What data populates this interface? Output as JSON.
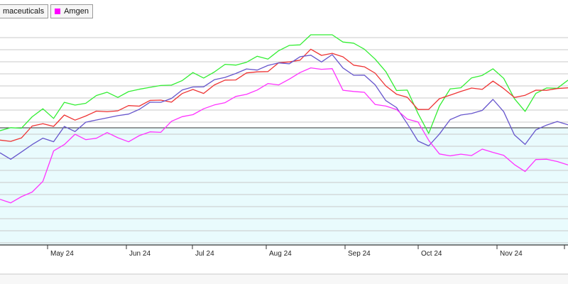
{
  "chart_data": {
    "type": "line",
    "legend": [
      {
        "label": "maceuticals",
        "color": "#2a2a2a",
        "swatch": false
      },
      {
        "label": "Amgen",
        "color": "#ff00ff",
        "swatch": true
      }
    ],
    "x_ticks": [
      "May 24",
      "Jun 24",
      "Jul 24",
      "Aug 24",
      "Sep 24",
      "Oct 24",
      "Nov 24"
    ],
    "xlabel": "",
    "ylabel": "",
    "grid": true,
    "legend_position": "top-left",
    "baseline_note": "horizontal reference line with pale cyan fill below it",
    "series": [
      {
        "color": "#33ee33",
        "values": [
          -0.5,
          -0.3,
          0.3,
          1.8,
          3.0,
          2.0,
          4.2,
          3.7,
          4.6,
          5.3,
          6.0,
          5.6,
          5.9,
          6.6,
          7.3,
          6.9,
          7.4,
          8.4,
          9.1,
          8.7,
          9.8,
          10.5,
          11.0,
          11.4,
          11.9,
          12.1,
          13.3,
          13.8,
          14.6,
          16.8,
          15.9,
          16.5,
          14.6,
          14.3,
          13.9,
          11.6,
          9.5,
          6.8,
          6.2,
          2.4,
          -0.6,
          3.4,
          6.7,
          7.2,
          8.2,
          9.1,
          10.4,
          8.1,
          5.2,
          3.0,
          5.5,
          7.1,
          6.9,
          7.8
        ]
      },
      {
        "color": "#ee3333",
        "values": [
          -2.5,
          -2.2,
          -1.5,
          -0.1,
          0.9,
          0.4,
          1.8,
          1.6,
          2.1,
          2.5,
          3.1,
          2.9,
          3.5,
          4.1,
          4.6,
          4.5,
          4.8,
          5.7,
          6.4,
          6.3,
          7.1,
          8.1,
          8.6,
          9.1,
          9.6,
          10.0,
          10.8,
          11.4,
          11.9,
          13.1,
          12.6,
          13.0,
          11.8,
          11.0,
          10.6,
          9.0,
          7.5,
          5.8,
          4.9,
          3.5,
          3.1,
          4.7,
          6.0,
          6.1,
          6.6,
          7.0,
          7.8,
          6.6,
          5.6,
          5.3,
          6.4,
          6.8,
          6.4,
          6.9
        ]
      },
      {
        "color": "#6655cc",
        "values": [
          -4.5,
          -5.0,
          -4.4,
          -3.0,
          -1.4,
          -2.7,
          0.2,
          -0.3,
          0.6,
          1.4,
          2.0,
          1.7,
          2.5,
          3.4,
          4.0,
          4.6,
          5.2,
          6.1,
          7.3,
          7.1,
          7.9,
          9.0,
          9.3,
          9.8,
          10.3,
          10.6,
          10.9,
          11.4,
          12.0,
          12.3,
          11.7,
          12.3,
          10.2,
          9.4,
          8.7,
          7.4,
          5.0,
          3.1,
          0.8,
          -2.0,
          -3.5,
          -0.9,
          1.6,
          1.8,
          2.7,
          3.1,
          4.5,
          3.1,
          -1.2,
          -3.2,
          0.0,
          0.4,
          0.8,
          0.9
        ]
      },
      {
        "color": "#ff33ff",
        "values": [
          -12.0,
          -12.8,
          -12.2,
          -10.7,
          -9.2,
          -4.3,
          -2.5,
          -1.2,
          -2.3,
          -1.4,
          -1.0,
          -1.9,
          -2.0,
          -1.6,
          -0.8,
          -0.4,
          0.8,
          1.9,
          2.6,
          2.9,
          4.0,
          4.6,
          5.0,
          5.9,
          6.7,
          7.2,
          7.6,
          8.5,
          9.1,
          10.6,
          10.1,
          9.8,
          6.8,
          6.2,
          5.8,
          4.4,
          3.6,
          2.9,
          1.9,
          0.8,
          -2.3,
          -4.1,
          -5.1,
          -4.6,
          -4.4,
          -4.0,
          -4.2,
          -4.4,
          -6.7,
          -7.4,
          -5.2,
          -5.8,
          -5.6,
          -6.2
        ]
      }
    ]
  }
}
